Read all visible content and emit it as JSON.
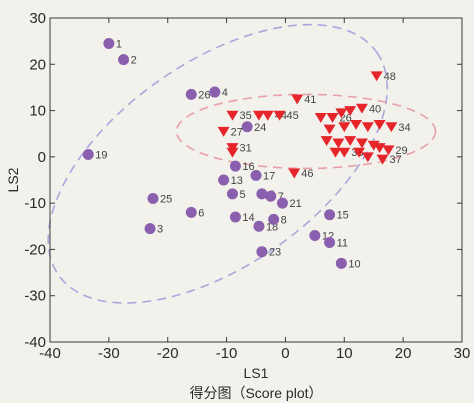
{
  "chart_data": {
    "type": "scatter",
    "title": "",
    "caption": "得分图（Score plot）",
    "xlabel": "LS1",
    "ylabel": "LS2",
    "xlim": [
      -40,
      30
    ],
    "ylim": [
      -40,
      30
    ],
    "xticks": [
      -40,
      -30,
      -20,
      -10,
      0,
      10,
      20,
      30
    ],
    "yticks": [
      -40,
      -30,
      -20,
      -10,
      0,
      10,
      20,
      30
    ],
    "grid": false,
    "legend": "none",
    "series": [
      {
        "marker": "circle",
        "color": "#8a5fae",
        "points": [
          {
            "label": "1",
            "x": -30,
            "y": 24.5
          },
          {
            "label": "2",
            "x": -27.5,
            "y": 21
          },
          {
            "label": "26",
            "x": -16,
            "y": 13.5
          },
          {
            "label": "4",
            "x": -12,
            "y": 14
          },
          {
            "label": "19",
            "x": -33.5,
            "y": 0.5
          },
          {
            "label": "25",
            "x": -22.5,
            "y": -9
          },
          {
            "label": "6",
            "x": -16,
            "y": -12
          },
          {
            "label": "3",
            "x": -23,
            "y": -15.5
          },
          {
            "label": "24",
            "x": -6.5,
            "y": 6.5
          },
          {
            "label": "16",
            "x": -8.5,
            "y": -2
          },
          {
            "label": "13",
            "x": -10.5,
            "y": -5
          },
          {
            "label": "5",
            "x": -9,
            "y": -8
          },
          {
            "label": "17",
            "x": -5,
            "y": -4
          },
          {
            "label": "9",
            "x": -4,
            "y": -8
          },
          {
            "label": "7",
            "x": -2.5,
            "y": -8.5
          },
          {
            "label": "21",
            "x": -0.5,
            "y": -10
          },
          {
            "label": "14",
            "x": -8.5,
            "y": -13
          },
          {
            "label": "18",
            "x": -4.5,
            "y": -15
          },
          {
            "label": "8",
            "x": -2,
            "y": -13.5
          },
          {
            "label": "23",
            "x": -4,
            "y": -20.5
          },
          {
            "label": "15",
            "x": 7.5,
            "y": -12.5
          },
          {
            "label": "12",
            "x": 5,
            "y": -17
          },
          {
            "label": "11",
            "x": 7.5,
            "y": -18.5
          },
          {
            "label": "10",
            "x": 9.5,
            "y": -23
          }
        ]
      },
      {
        "marker": "triangle-down",
        "color": "#e5252a",
        "points": [
          {
            "label": "48",
            "x": 15.5,
            "y": 17.5
          },
          {
            "label": "41",
            "x": 2,
            "y": 12.5
          },
          {
            "label": "35",
            "x": -9,
            "y": 9
          },
          {
            "label": "27",
            "x": -10.5,
            "y": 5.5
          },
          {
            "label": "",
            "x": -4.5,
            "y": 9
          },
          {
            "label": "44",
            "x": -3,
            "y": 9
          },
          {
            "label": "45",
            "x": -1,
            "y": 9
          },
          {
            "label": "31",
            "x": -9,
            "y": 2
          },
          {
            "label": "",
            "x": -9,
            "y": 1
          },
          {
            "label": "46",
            "x": 1.5,
            "y": -3.5
          },
          {
            "label": "",
            "x": 6,
            "y": 8.5
          },
          {
            "label": "26",
            "x": 8,
            "y": 8.5
          },
          {
            "label": "",
            "x": 9.5,
            "y": 9.5
          },
          {
            "label": "",
            "x": 11,
            "y": 10
          },
          {
            "label": "40",
            "x": 13,
            "y": 10.5
          },
          {
            "label": "",
            "x": 7.5,
            "y": 6
          },
          {
            "label": "",
            "x": 10,
            "y": 6.5
          },
          {
            "label": "",
            "x": 12,
            "y": 7
          },
          {
            "label": "",
            "x": 14,
            "y": 6.5
          },
          {
            "label": "",
            "x": 16,
            "y": 7
          },
          {
            "label": "34",
            "x": 18,
            "y": 6.5
          },
          {
            "label": "",
            "x": 7,
            "y": 3.5
          },
          {
            "label": "",
            "x": 9,
            "y": 3
          },
          {
            "label": "",
            "x": 11,
            "y": 3.5
          },
          {
            "label": "",
            "x": 13,
            "y": 3
          },
          {
            "label": "",
            "x": 15,
            "y": 2.5
          },
          {
            "label": "",
            "x": 8.5,
            "y": 1
          },
          {
            "label": "38",
            "x": 10,
            "y": 1
          },
          {
            "label": "",
            "x": 12.5,
            "y": 1
          },
          {
            "label": "",
            "x": 14,
            "y": 0
          },
          {
            "label": "",
            "x": 16,
            "y": 2
          },
          {
            "label": "29",
            "x": 17.5,
            "y": 1.5
          },
          {
            "label": "37",
            "x": 16.5,
            "y": -0.5
          }
        ]
      }
    ],
    "annotations": [
      {
        "type": "dashed-ellipse",
        "color": "#a9a6dd",
        "cx": -11.5,
        "cy": -1.5,
        "rx": 33,
        "ry": 22,
        "angle": -35
      },
      {
        "type": "dashed-ellipse",
        "color": "#e8a0a8",
        "cx": 3.5,
        "cy": 5.5,
        "rx": 22,
        "ry": 8,
        "angle": 0
      }
    ]
  }
}
